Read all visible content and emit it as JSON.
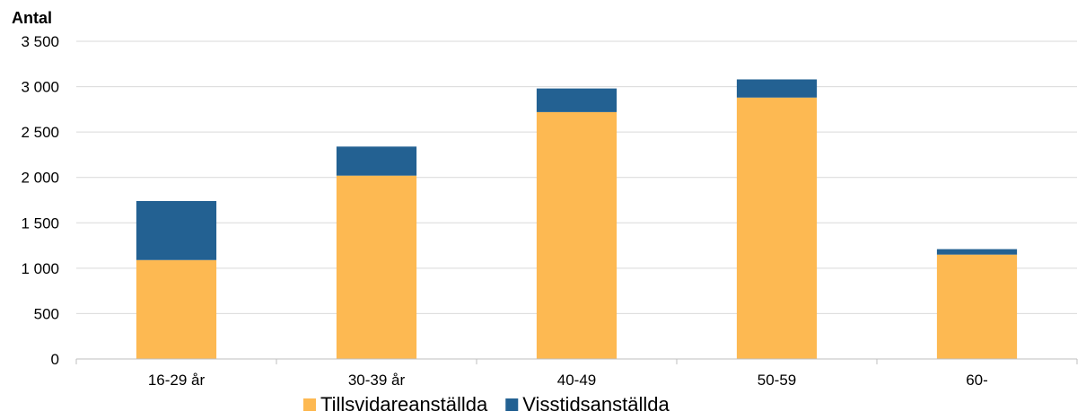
{
  "chart_data": {
    "type": "bar",
    "stacked": true,
    "title": "",
    "ylabel": "Antal",
    "xlabel": "",
    "categories": [
      "16-29 år",
      "30-39 år",
      "40-49",
      "50-59",
      "60-"
    ],
    "series": [
      {
        "name": "Tillsvidareanställda",
        "color": "#FDB952",
        "values": [
          1090,
          2020,
          2720,
          2880,
          1150
        ]
      },
      {
        "name": "Visstidsanställda",
        "color": "#236192",
        "values": [
          650,
          320,
          260,
          200,
          60
        ]
      }
    ],
    "ylim": [
      0,
      3500
    ],
    "yticks": [
      0,
      500,
      1000,
      1500,
      2000,
      2500,
      3000,
      3500
    ],
    "ytick_labels": [
      "0",
      "500",
      "1 000",
      "1 500",
      "2 000",
      "2 500",
      "3 000",
      "3 500"
    ],
    "grid": true,
    "grid_color": "#d9d9d9",
    "legend": {
      "position": "bottom",
      "items": [
        "Tillsvidareanställda",
        "Visstidsanställda"
      ]
    }
  }
}
